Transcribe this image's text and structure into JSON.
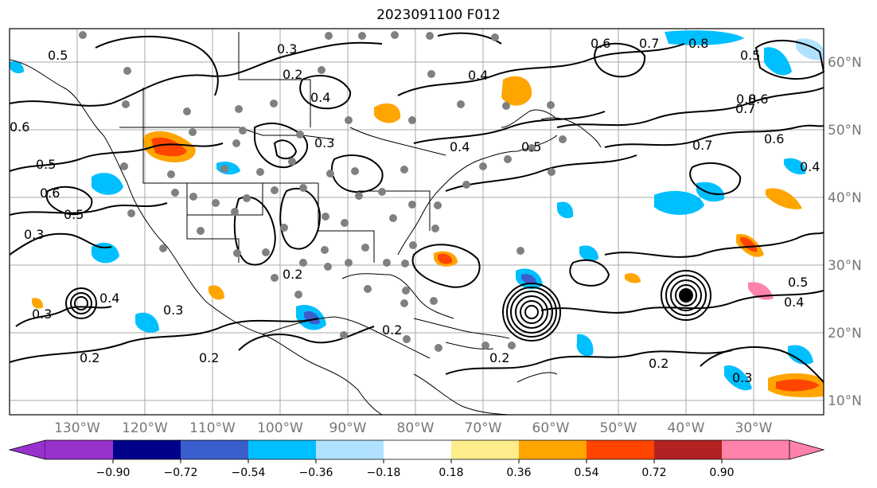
{
  "title": "2023091100 F012",
  "map": {
    "lon_labels": [
      "130°W",
      "120°W",
      "110°W",
      "100°W",
      "90°W",
      "80°W",
      "70°W",
      "60°W",
      "50°W",
      "40°W",
      "30°W"
    ],
    "lat_labels": [
      "60°N",
      "50°N",
      "40°N",
      "30°N",
      "20°N",
      "10°N"
    ],
    "contour_labels": [
      "0.3",
      "0.2",
      "0.4",
      "0.6",
      "0.7",
      "0.8",
      "0.5",
      "0.6",
      "0.7",
      "0.5",
      "0.3",
      "0.2",
      "0.2",
      "0.3",
      "0.4",
      "0.3",
      "0.2",
      "0.4",
      "0.5",
      "0.4",
      "0.5",
      "0.6",
      "0.8",
      "0.7",
      "0.6",
      "0.4",
      "0.5",
      "0.3",
      "0.4",
      "0.6",
      "0.5",
      "0.3",
      "0.2",
      "0.2",
      "0.2"
    ],
    "colors": {
      "contour": "#000000",
      "grid": "#a9a9a9",
      "station": "#808080",
      "label": "#777777"
    }
  },
  "colorbar": {
    "ticks": [
      "−0.90",
      "−0.72",
      "−0.54",
      "−0.36",
      "−0.18",
      "0.18",
      "0.36",
      "0.54",
      "0.72",
      "0.90"
    ],
    "colors": [
      "#9932cc",
      "#00008b",
      "#3a5fcd",
      "#00bfff",
      "#b0e2ff",
      "#ffffff",
      "#ffec8b",
      "#ffa500",
      "#ff4500",
      "#b22222",
      "#ff82ab"
    ]
  }
}
